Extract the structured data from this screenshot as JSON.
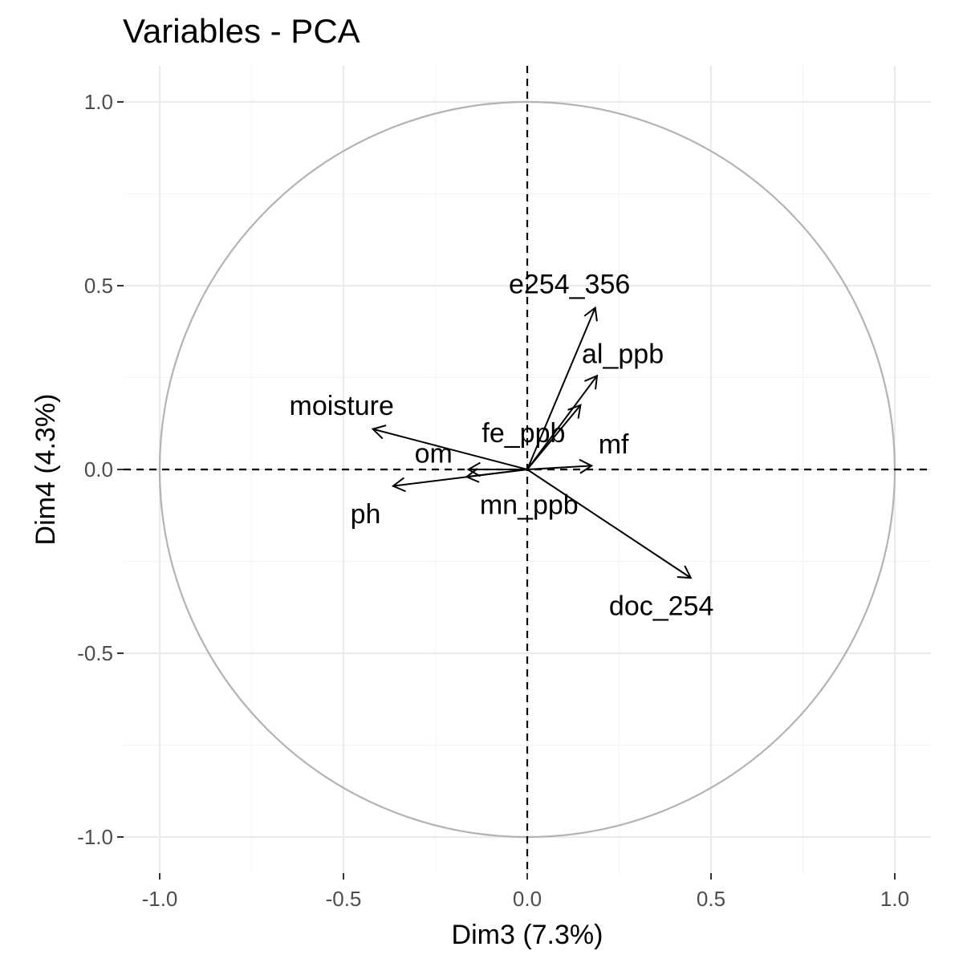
{
  "chart_data": {
    "type": "scatter",
    "title": "Variables - PCA",
    "xlabel": "Dim3 (7.3%)",
    "ylabel": "Dim4 (4.3%)",
    "xlim": [
      -1.1,
      1.1
    ],
    "ylim": [
      -1.1,
      1.1
    ],
    "x_ticks": [
      {
        "value": -1.0,
        "label": "-1.0"
      },
      {
        "value": -0.5,
        "label": "-0.5"
      },
      {
        "value": 0.0,
        "label": "0.0"
      },
      {
        "value": 0.5,
        "label": "0.5"
      },
      {
        "value": 1.0,
        "label": "1.0"
      }
    ],
    "y_ticks": [
      {
        "value": 1.0,
        "label": "1.0"
      },
      {
        "value": 0.5,
        "label": "0.5"
      },
      {
        "value": 0.0,
        "label": "0.0"
      },
      {
        "value": -0.5,
        "label": "-0.5"
      },
      {
        "value": -1.0,
        "label": "-1.0"
      }
    ],
    "grid": true,
    "correlation_circle": true,
    "variables": [
      {
        "name": "e254_356",
        "x": 0.185,
        "y": 0.44,
        "label_x": 0.115,
        "label_y": 0.505
      },
      {
        "name": "al_ppb",
        "x": 0.19,
        "y": 0.255,
        "label_x": 0.26,
        "label_y": 0.315
      },
      {
        "name": "fe_ppb",
        "x": 0.145,
        "y": 0.175,
        "label_x": -0.01,
        "label_y": 0.1
      },
      {
        "name": "mf",
        "x": 0.175,
        "y": 0.01,
        "label_x": 0.235,
        "label_y": 0.07
      },
      {
        "name": "moisture",
        "x": -0.42,
        "y": 0.11,
        "label_x": -0.505,
        "label_y": 0.175
      },
      {
        "name": "om",
        "x": -0.16,
        "y": 0.0,
        "label_x": -0.255,
        "label_y": 0.045
      },
      {
        "name": "mn_ppb",
        "x": -0.165,
        "y": -0.02,
        "label_x": 0.005,
        "label_y": -0.095
      },
      {
        "name": "ph",
        "x": -0.365,
        "y": -0.045,
        "label_x": -0.44,
        "label_y": -0.12
      },
      {
        "name": "doc_254",
        "x": 0.445,
        "y": -0.295,
        "label_x": 0.365,
        "label_y": -0.37
      }
    ]
  }
}
